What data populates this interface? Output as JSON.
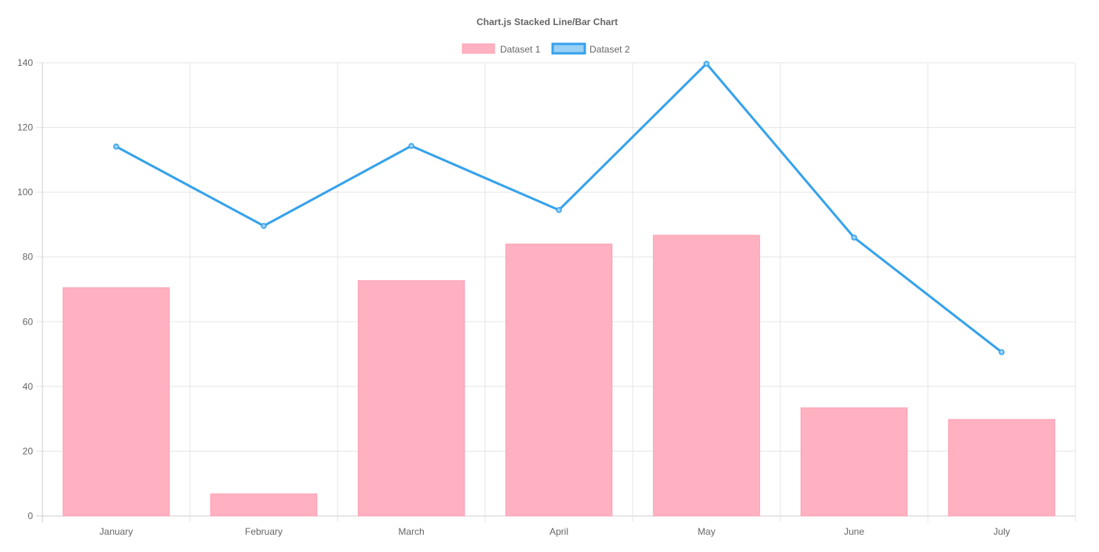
{
  "chart_data": {
    "type": "bar",
    "title": "Chart.js Stacked Line/Bar Chart",
    "categories": [
      "January",
      "February",
      "March",
      "April",
      "May",
      "June",
      "July"
    ],
    "series": [
      {
        "name": "Dataset 1",
        "type": "bar",
        "values": [
          70.5,
          6.8,
          72.7,
          84.0,
          86.7,
          33.4,
          29.8
        ],
        "color": "#ffb1c1",
        "border": "#ff9fb4"
      },
      {
        "name": "Dataset 2",
        "type": "line",
        "values": [
          114.1,
          89.6,
          114.3,
          94.5,
          139.7,
          86.0,
          50.6
        ],
        "color": "#36a2eb",
        "fill": "#9ad0f5"
      }
    ],
    "yticks": [
      0,
      20,
      40,
      60,
      80,
      100,
      120,
      140
    ],
    "ylim": [
      0,
      140
    ],
    "grid": true,
    "legend": "top"
  }
}
